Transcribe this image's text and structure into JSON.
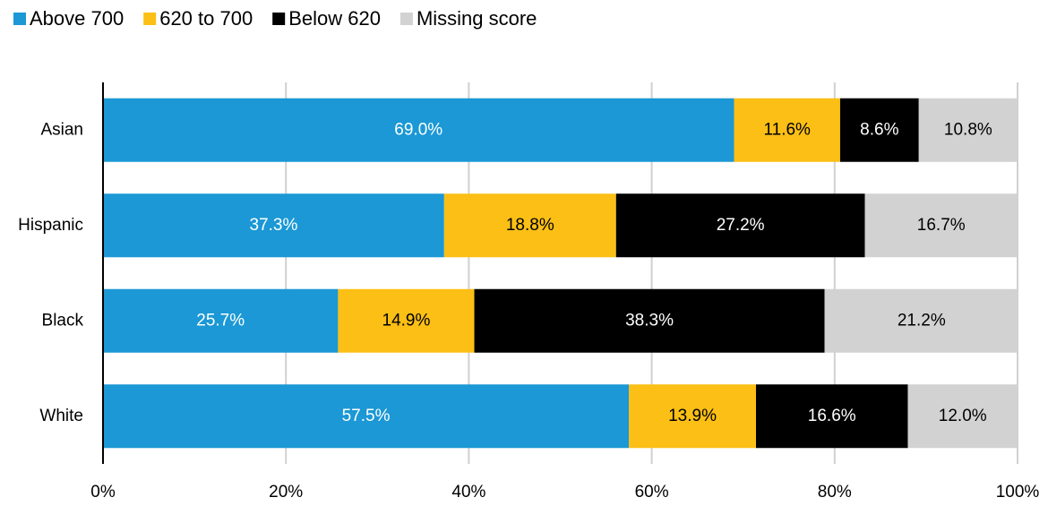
{
  "chart_data": {
    "type": "stacked-bar-horizontal",
    "categories": [
      "Asian",
      "Hispanic",
      "Black",
      "White"
    ],
    "series": [
      {
        "name": "Above 700",
        "color": "#1b98d5",
        "values": [
          69.0,
          37.3,
          25.7,
          57.5
        ],
        "value_labels": [
          "69.0%",
          "37.3%",
          "25.7%",
          "57.5%"
        ]
      },
      {
        "name": "620 to 700",
        "color": "#fbbf15",
        "values": [
          11.6,
          18.8,
          14.9,
          13.9
        ],
        "value_labels": [
          "11.6%",
          "18.8%",
          "14.9%",
          "13.9%"
        ]
      },
      {
        "name": "Below 620",
        "color": "#000000",
        "values": [
          8.6,
          27.2,
          38.3,
          16.6
        ],
        "value_labels": [
          "8.6%",
          "27.2%",
          "38.3%",
          "16.6%"
        ]
      },
      {
        "name": "Missing score",
        "color": "#d2d2d2",
        "values": [
          10.8,
          16.7,
          21.2,
          12.0
        ],
        "value_labels": [
          "10.8%",
          "16.7%",
          "21.2%",
          "12.0%"
        ]
      }
    ],
    "xlim": [
      0,
      100
    ],
    "xticks": [
      {
        "value": 0,
        "label": "0%"
      },
      {
        "value": 20,
        "label": "20%"
      },
      {
        "value": 40,
        "label": "40%"
      },
      {
        "value": 60,
        "label": "60%"
      },
      {
        "value": 80,
        "label": "80%"
      },
      {
        "value": 100,
        "label": "100%"
      }
    ],
    "grid": true,
    "legend": "top-left"
  }
}
